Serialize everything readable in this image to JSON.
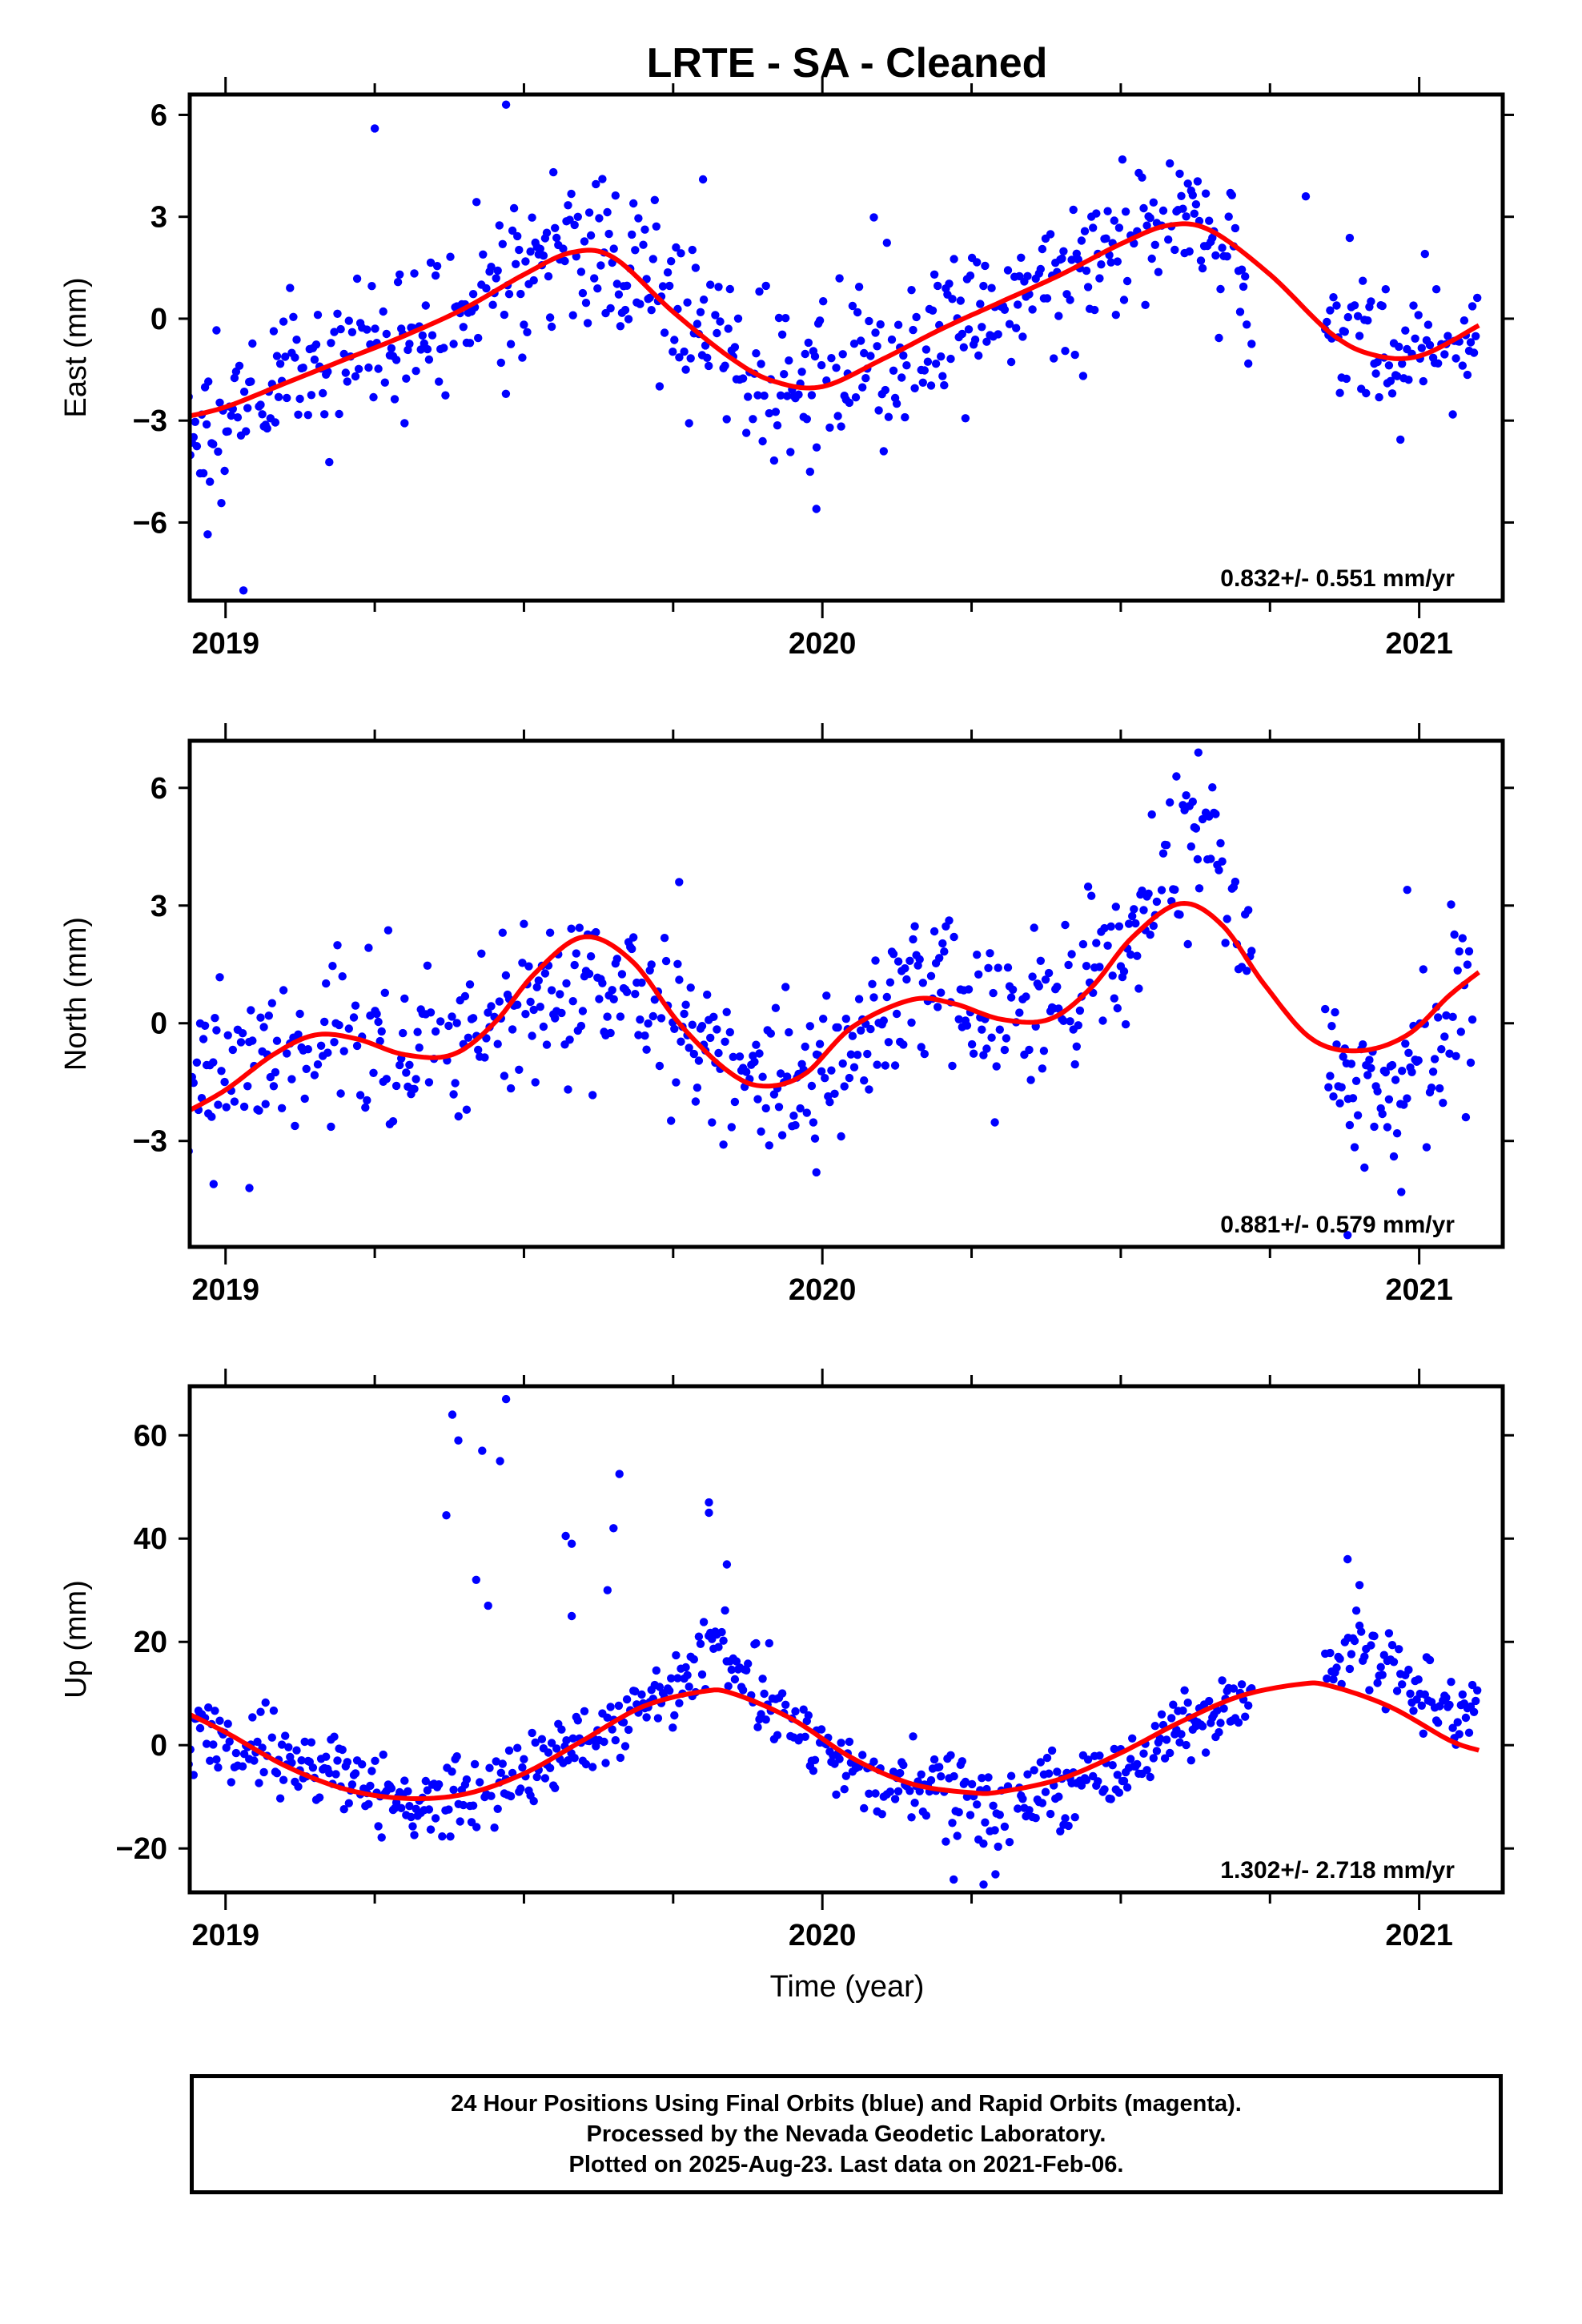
{
  "figure": {
    "title": "LRTE  - SA - Cleaned",
    "xlabel": "Time (year)",
    "colors": {
      "final_orbits": "#0000ff",
      "fit_curve": "#ff0000",
      "frame": "#000000"
    }
  },
  "footer": {
    "line1": "24 Hour Positions Using Final Orbits (blue) and Rapid Orbits (magenta).",
    "line2": "Processed by the Nevada Geodetic Laboratory.",
    "line3": "Plotted on 2025-Aug-23. Last data on 2021-Feb-06."
  },
  "chart_data": [
    {
      "type": "scatter",
      "ylabel": "East (mm)",
      "rate": "0.832+/- 0.551 mm/yr",
      "xlim": [
        2018.94,
        2021.14
      ],
      "ylim": [
        -8.3,
        6.6
      ],
      "xticks": [
        2019,
        2020,
        2021
      ],
      "yticks": [
        -6,
        -3,
        0,
        3,
        6
      ],
      "ytick_labels": [
        "−6",
        "−3",
        "0",
        "3",
        "6"
      ],
      "fit": {
        "x": [
          2018.93,
          2019.0,
          2019.1,
          2019.2,
          2019.3,
          2019.4,
          2019.5,
          2019.58,
          2019.65,
          2019.75,
          2019.85,
          2019.92,
          2020.0,
          2020.1,
          2020.2,
          2020.3,
          2020.4,
          2020.5,
          2020.58,
          2020.65,
          2020.75,
          2020.85,
          2020.92,
          2021.0,
          2021.1
        ],
        "y": [
          -2.9,
          -2.6,
          -1.9,
          -1.2,
          -0.5,
          0.3,
          1.3,
          1.95,
          1.8,
          0.2,
          -1.2,
          -1.85,
          -2.0,
          -1.2,
          -0.3,
          0.5,
          1.3,
          2.2,
          2.75,
          2.6,
          1.3,
          -0.4,
          -1.05,
          -1.1,
          -0.2
        ]
      },
      "anchors": {
        "x": [
          2018.93,
          2019.1,
          2019.3,
          2019.5,
          2019.58,
          2019.7,
          2019.85,
          2019.92,
          2020.0,
          2020.1,
          2020.3,
          2020.5,
          2020.58,
          2020.68,
          2020.75,
          2020.85,
          2020.95,
          2021.1
        ],
        "y": [
          -2.9,
          -1.9,
          -0.5,
          1.3,
          2.2,
          1.3,
          -1.2,
          -1.9,
          -2.0,
          -1.2,
          0.5,
          2.2,
          3.3,
          2.3,
          0.0,
          -0.2,
          -0.9,
          -0.7
        ]
      },
      "noise": 1.15,
      "gap": [
        2020.72,
        2020.84
      ],
      "seed": 11,
      "outliers": [
        [
          2018.97,
          -6.35
        ],
        [
          2019.03,
          -8.0
        ],
        [
          2019.25,
          5.6
        ],
        [
          2019.47,
          6.3
        ],
        [
          2019.8,
          4.1
        ],
        [
          2019.99,
          -5.6
        ],
        [
          2020.81,
          3.6
        ]
      ]
    },
    {
      "type": "scatter",
      "ylabel": "North (mm)",
      "rate": "0.881+/- 0.579 mm/yr",
      "xlim": [
        2018.94,
        2021.14
      ],
      "ylim": [
        -5.7,
        7.2
      ],
      "xticks": [
        2019,
        2020,
        2021
      ],
      "yticks": [
        -3,
        0,
        3,
        6
      ],
      "ytick_labels": [
        "−3",
        "0",
        "3",
        "6"
      ],
      "fit": {
        "x": [
          2018.93,
          2019.0,
          2019.08,
          2019.15,
          2019.22,
          2019.3,
          2019.38,
          2019.45,
          2019.52,
          2019.6,
          2019.68,
          2019.76,
          2019.84,
          2019.9,
          2019.97,
          2020.05,
          2020.15,
          2020.22,
          2020.3,
          2020.38,
          2020.45,
          2020.52,
          2020.6,
          2020.67,
          2020.74,
          2020.82,
          2020.9,
          2020.98,
          2021.05,
          2021.1
        ],
        "y": [
          -2.3,
          -1.7,
          -0.8,
          -0.3,
          -0.4,
          -0.8,
          -0.8,
          0.0,
          1.3,
          2.2,
          1.6,
          0.0,
          -1.2,
          -1.6,
          -1.3,
          -0.1,
          0.6,
          0.5,
          0.1,
          0.1,
          0.9,
          2.2,
          3.05,
          2.5,
          1.0,
          -0.4,
          -0.7,
          -0.3,
          0.7,
          1.3
        ]
      },
      "anchors": {
        "x": [
          2018.93,
          2019.08,
          2019.15,
          2019.3,
          2019.45,
          2019.6,
          2019.75,
          2019.9,
          2020.0,
          2020.15,
          2020.35,
          2020.5,
          2020.6,
          2020.66,
          2020.72,
          2020.85,
          2020.95,
          2021.1
        ],
        "y": [
          -1.6,
          -0.8,
          -0.3,
          -0.8,
          0.0,
          1.2,
          0.0,
          -1.5,
          -1.0,
          0.6,
          0.1,
          1.7,
          4.8,
          4.4,
          1.5,
          -0.8,
          -1.8,
          0.6
        ]
      },
      "noise": 1.0,
      "gap": [
        2020.72,
        2020.84
      ],
      "seed": 23,
      "outliers": [
        [
          2018.98,
          -4.1
        ],
        [
          2019.04,
          -4.2
        ],
        [
          2019.76,
          3.6
        ],
        [
          2019.99,
          -3.8
        ],
        [
          2020.63,
          6.9
        ],
        [
          2020.88,
          -5.4
        ],
        [
          2020.98,
          3.4
        ],
        [
          2020.97,
          -4.3
        ]
      ]
    },
    {
      "type": "scatter",
      "ylabel": "Up (mm)",
      "rate": "1.302+/- 2.718 mm/yr",
      "xlim": [
        2018.94,
        2021.14
      ],
      "ylim": [
        -28.5,
        69.5
      ],
      "xticks": [
        2019,
        2020,
        2021
      ],
      "yticks": [
        -20,
        0,
        20,
        40,
        60
      ],
      "ytick_labels": [
        "−20",
        "0",
        "20",
        "40",
        "60"
      ],
      "fit": {
        "x": [
          2018.93,
          2019.0,
          2019.1,
          2019.2,
          2019.3,
          2019.4,
          2019.5,
          2019.6,
          2019.7,
          2019.8,
          2019.85,
          2019.95,
          2020.05,
          2020.15,
          2020.25,
          2020.3,
          2020.4,
          2020.5,
          2020.6,
          2020.7,
          2020.8,
          2020.85,
          2020.95,
          2021.05,
          2021.1
        ],
        "y": [
          6.5,
          2.5,
          -4.0,
          -8.5,
          -10.3,
          -9.5,
          -5.5,
          1.0,
          7.5,
          10.4,
          10.0,
          5.0,
          -2.5,
          -7.5,
          -9.2,
          -9.0,
          -6.5,
          -1.5,
          4.5,
          9.5,
          11.8,
          11.5,
          7.5,
          1.0,
          -1.0
        ]
      },
      "anchors": {
        "x": [
          2018.93,
          2019.1,
          2019.3,
          2019.45,
          2019.6,
          2019.75,
          2019.82,
          2019.95,
          2020.1,
          2020.3,
          2020.5,
          2020.65,
          2020.8,
          2020.9,
          2021.0,
          2021.1
        ],
        "y": [
          2.0,
          -2.0,
          -11.0,
          -9.0,
          0.0,
          10.0,
          20.0,
          4.0,
          -7.0,
          -12.0,
          -5.0,
          6.0,
          15.0,
          20.0,
          10.0,
          6.0
        ]
      },
      "noise": 3.6,
      "gap": [
        2020.72,
        2020.84
      ],
      "seed": 37,
      "outliers": [
        [
          2019.38,
          64
        ],
        [
          2019.39,
          59
        ],
        [
          2019.37,
          44.5
        ],
        [
          2019.42,
          32
        ],
        [
          2019.44,
          27
        ],
        [
          2019.43,
          57
        ],
        [
          2019.47,
          67
        ],
        [
          2019.46,
          55
        ],
        [
          2019.57,
          40.5
        ],
        [
          2019.58,
          39
        ],
        [
          2019.58,
          25
        ],
        [
          2019.65,
          42
        ],
        [
          2019.66,
          52.5
        ],
        [
          2019.64,
          30
        ],
        [
          2019.81,
          47
        ],
        [
          2019.81,
          45
        ],
        [
          2019.84,
          35
        ],
        [
          2020.22,
          -26
        ],
        [
          2020.27,
          -27
        ],
        [
          2020.29,
          -25
        ],
        [
          2020.88,
          36
        ],
        [
          2020.9,
          31
        ]
      ]
    }
  ]
}
